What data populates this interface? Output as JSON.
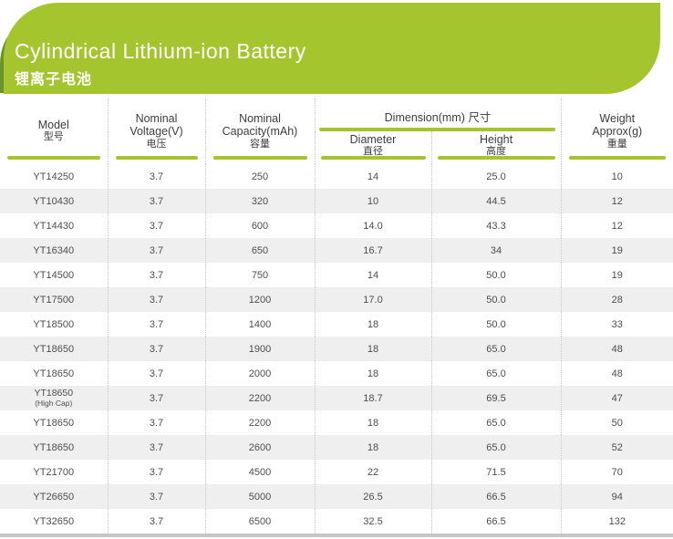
{
  "banner": {
    "title": "Cylindrical Lithium-ion Battery",
    "subtitle": "锂离子电池"
  },
  "colors": {
    "accent_green": "#a5c52f",
    "dark_green": "#68942c",
    "alt_row_gray": "#efefef",
    "bottom_bar_gray": "#c6c6c6"
  },
  "table": {
    "header": {
      "model": {
        "en": "Model",
        "zh": "型号"
      },
      "voltage": {
        "line1": "Nominal",
        "line2": "Voltage(V)",
        "zh": "电压"
      },
      "capacity": {
        "line1": "Nominal",
        "line2": "Capacity(mAh)",
        "zh": "容量"
      },
      "dimension": {
        "en": "Dimension(mm)",
        "zh": "尺寸"
      },
      "diameter": {
        "en": "Diameter",
        "zh": "直径"
      },
      "height": {
        "en": "Height",
        "zh": "高度"
      },
      "weight": {
        "line1": "Weight",
        "line2": "Approx(g)",
        "zh": "重量"
      }
    },
    "rows": [
      {
        "model": "YT14250",
        "voltage": "3.7",
        "capacity": "250",
        "diameter": "14",
        "height": "25.0",
        "weight": "10"
      },
      {
        "model": "YT10430",
        "voltage": "3.7",
        "capacity": "320",
        "diameter": "10",
        "height": "44.5",
        "weight": "12"
      },
      {
        "model": "YT14430",
        "voltage": "3.7",
        "capacity": "600",
        "diameter": "14.0",
        "height": "43.3",
        "weight": "12"
      },
      {
        "model": "YT16340",
        "voltage": "3.7",
        "capacity": "650",
        "diameter": "16.7",
        "height": "34",
        "weight": "19"
      },
      {
        "model": "YT14500",
        "voltage": "3.7",
        "capacity": "750",
        "diameter": "14",
        "height": "50.0",
        "weight": "19"
      },
      {
        "model": "YT17500",
        "voltage": "3.7",
        "capacity": "1200",
        "diameter": "17.0",
        "height": "50.0",
        "weight": "28"
      },
      {
        "model": "YT18500",
        "voltage": "3.7",
        "capacity": "1400",
        "diameter": "18",
        "height": "50.0",
        "weight": "33"
      },
      {
        "model": "YT18650",
        "voltage": "3.7",
        "capacity": "1900",
        "diameter": "18",
        "height": "65.0",
        "weight": "48"
      },
      {
        "model": "YT18650",
        "voltage": "3.7",
        "capacity": "2000",
        "diameter": "18",
        "height": "65.0",
        "weight": "48"
      },
      {
        "model": "YT18650",
        "model_note": "(High Cap)",
        "voltage": "3.7",
        "capacity": "2200",
        "diameter": "18.7",
        "height": "69.5",
        "weight": "47"
      },
      {
        "model": "YT18650",
        "voltage": "3.7",
        "capacity": "2200",
        "diameter": "18",
        "height": "65.0",
        "weight": "50"
      },
      {
        "model": "YT18650",
        "voltage": "3.7",
        "capacity": "2600",
        "diameter": "18",
        "height": "65.0",
        "weight": "52"
      },
      {
        "model": "YT21700",
        "voltage": "3.7",
        "capacity": "4500",
        "diameter": "22",
        "height": "71.5",
        "weight": "70"
      },
      {
        "model": "YT26650",
        "voltage": "3.7",
        "capacity": "5000",
        "diameter": "26.5",
        "height": "66.5",
        "weight": "94"
      },
      {
        "model": "YT32650",
        "voltage": "3.7",
        "capacity": "6500",
        "diameter": "32.5",
        "height": "66.5",
        "weight": "132"
      }
    ]
  }
}
